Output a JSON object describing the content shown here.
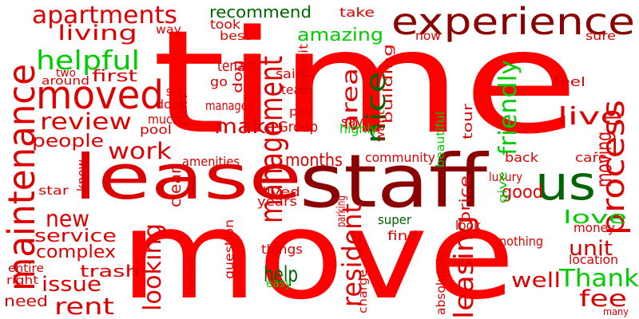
{
  "colors": {
    "bright_red": "#ff0000",
    "red": "#dd0000",
    "dark_red": "#8b0000",
    "green": "#00cc00",
    "dark_green": "#006400"
  },
  "words": [
    {
      "text": "time",
      "color": "bright_red"
    },
    {
      "text": "move",
      "color": "bright_red"
    },
    {
      "text": "staff",
      "color": "dark_red"
    },
    {
      "text": "lease",
      "color": "red"
    },
    {
      "text": "us",
      "color": "dark_green"
    },
    {
      "text": "experience",
      "color": "dark_red"
    },
    {
      "text": "maintenance",
      "color": "red"
    },
    {
      "text": "moved",
      "color": "red"
    },
    {
      "text": "apartments",
      "color": "red"
    },
    {
      "text": "living",
      "color": "red"
    },
    {
      "text": "helpful",
      "color": "green"
    },
    {
      "text": "management",
      "color": "red"
    },
    {
      "text": "nice",
      "color": "dark_green"
    },
    {
      "text": "review",
      "color": "red"
    },
    {
      "text": "work",
      "color": "red"
    },
    {
      "text": "make",
      "color": "red"
    },
    {
      "text": "people",
      "color": "red"
    },
    {
      "text": "process",
      "color": "red"
    },
    {
      "text": "live",
      "color": "red"
    },
    {
      "text": "moving",
      "color": "red"
    },
    {
      "text": "friendly",
      "color": "green"
    },
    {
      "text": "area",
      "color": "red"
    },
    {
      "text": "amazing",
      "color": "green"
    },
    {
      "text": "recommend",
      "color": "dark_green"
    },
    {
      "text": "new",
      "color": "red"
    },
    {
      "text": "service",
      "color": "red"
    },
    {
      "text": "complex",
      "color": "red"
    },
    {
      "text": "issue",
      "color": "red"
    },
    {
      "text": "trash",
      "color": "red"
    },
    {
      "text": "rent",
      "color": "red"
    },
    {
      "text": "resident",
      "color": "red"
    },
    {
      "text": "looking",
      "color": "red"
    },
    {
      "text": "leasing",
      "color": "red"
    },
    {
      "text": "help",
      "color": "dark_green"
    },
    {
      "text": "Thank",
      "color": "green"
    },
    {
      "text": "well",
      "color": "red"
    },
    {
      "text": "fee",
      "color": "red"
    },
    {
      "text": "unit",
      "color": "red"
    },
    {
      "text": "love",
      "color": "green"
    },
    {
      "text": "good",
      "color": "red"
    },
    {
      "text": "months",
      "color": "red"
    },
    {
      "text": "first",
      "color": "red"
    },
    {
      "text": "take",
      "color": "red"
    },
    {
      "text": "way",
      "color": "red"
    },
    {
      "text": "took",
      "color": "red"
    },
    {
      "text": "best",
      "color": "red"
    },
    {
      "text": "deposit",
      "color": "red"
    },
    {
      "text": "now",
      "color": "red"
    },
    {
      "text": "sure",
      "color": "red"
    },
    {
      "text": "tenant",
      "color": "red"
    },
    {
      "text": "go",
      "color": "red"
    },
    {
      "text": "said",
      "color": "red"
    },
    {
      "text": "team",
      "color": "red"
    },
    {
      "text": "dog",
      "color": "red"
    },
    {
      "text": "two",
      "color": "red"
    },
    {
      "text": "around",
      "color": "red"
    },
    {
      "text": "see",
      "color": "red"
    },
    {
      "text": "door",
      "color": "red"
    },
    {
      "text": "nan",
      "color": "red"
    },
    {
      "text": "manager",
      "color": "red"
    },
    {
      "text": "pay",
      "color": "red"
    },
    {
      "text": "say",
      "color": "red"
    },
    {
      "text": "building",
      "color": "red"
    },
    {
      "text": "feel",
      "color": "red"
    },
    {
      "text": "much",
      "color": "red"
    },
    {
      "text": "pool",
      "color": "red"
    },
    {
      "text": "Group",
      "color": "red"
    },
    {
      "text": "highly",
      "color": "green"
    },
    {
      "text": "want",
      "color": "red"
    },
    {
      "text": "beautiful",
      "color": "green"
    },
    {
      "text": "tour",
      "color": "red"
    },
    {
      "text": "back",
      "color": "red"
    },
    {
      "text": "care",
      "color": "red"
    },
    {
      "text": "amenities",
      "color": "red"
    },
    {
      "text": "community",
      "color": "red"
    },
    {
      "text": "luxury",
      "color": "red"
    },
    {
      "text": "know",
      "color": "red"
    },
    {
      "text": "star",
      "color": "red"
    },
    {
      "text": "clean",
      "color": "red"
    },
    {
      "text": "lived",
      "color": "red"
    },
    {
      "text": "years",
      "color": "red"
    },
    {
      "text": "parking",
      "color": "red"
    },
    {
      "text": "give",
      "color": "green"
    },
    {
      "text": "price",
      "color": "red"
    },
    {
      "text": "super",
      "color": "dark_green"
    },
    {
      "text": "find",
      "color": "red"
    },
    {
      "text": "look",
      "color": "red"
    },
    {
      "text": "money",
      "color": "red"
    },
    {
      "text": "nothing",
      "color": "red"
    },
    {
      "text": "location",
      "color": "red"
    },
    {
      "text": "things",
      "color": "red"
    },
    {
      "text": "question",
      "color": "red"
    },
    {
      "text": "entire",
      "color": "red"
    },
    {
      "text": "right",
      "color": "red"
    },
    {
      "text": "week",
      "color": "red"
    },
    {
      "text": "easy",
      "color": "green"
    },
    {
      "text": "charge",
      "color": "red"
    },
    {
      "text": "absolutely",
      "color": "red"
    },
    {
      "text": "need",
      "color": "red"
    },
    {
      "text": "many",
      "color": "red"
    }
  ]
}
